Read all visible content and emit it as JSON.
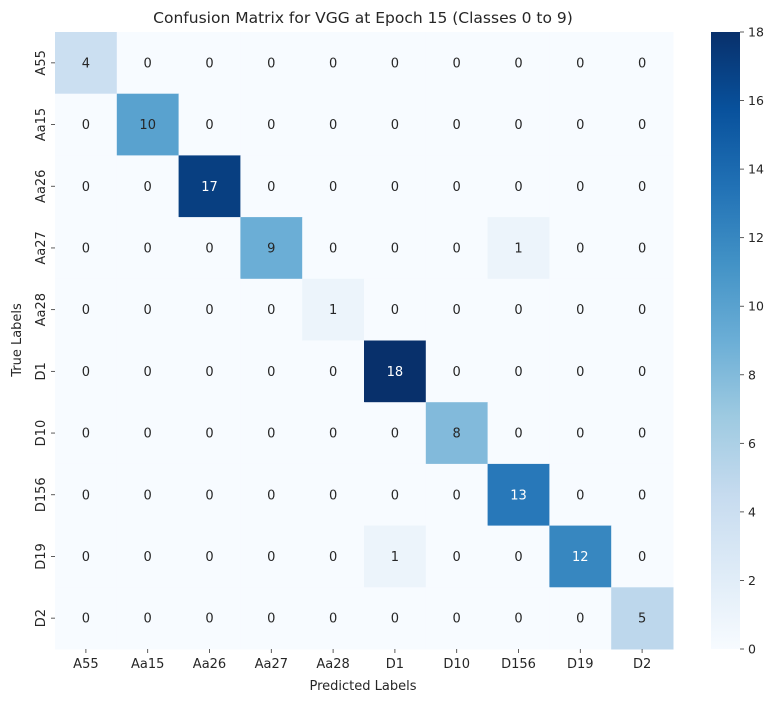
{
  "chart_data": {
    "type": "heatmap",
    "title": "Confusion Matrix for VGG at Epoch 15 (Classes 0 to 9)",
    "xlabel": "Predicted Labels",
    "ylabel": "True Labels",
    "x_categories": [
      "A55",
      "Aa15",
      "Aa26",
      "Aa27",
      "Aa28",
      "D1",
      "D10",
      "D156",
      "D19",
      "D2"
    ],
    "y_categories": [
      "A55",
      "Aa15",
      "Aa26",
      "Aa27",
      "Aa28",
      "D1",
      "D10",
      "D156",
      "D19",
      "D2"
    ],
    "matrix": [
      [
        4,
        0,
        0,
        0,
        0,
        0,
        0,
        0,
        0,
        0
      ],
      [
        0,
        10,
        0,
        0,
        0,
        0,
        0,
        0,
        0,
        0
      ],
      [
        0,
        0,
        17,
        0,
        0,
        0,
        0,
        0,
        0,
        0
      ],
      [
        0,
        0,
        0,
        9,
        0,
        0,
        0,
        1,
        0,
        0
      ],
      [
        0,
        0,
        0,
        0,
        1,
        0,
        0,
        0,
        0,
        0
      ],
      [
        0,
        0,
        0,
        0,
        0,
        18,
        0,
        0,
        0,
        0
      ],
      [
        0,
        0,
        0,
        0,
        0,
        0,
        8,
        0,
        0,
        0
      ],
      [
        0,
        0,
        0,
        0,
        0,
        0,
        0,
        13,
        0,
        0
      ],
      [
        0,
        0,
        0,
        0,
        0,
        1,
        0,
        0,
        12,
        0
      ],
      [
        0,
        0,
        0,
        0,
        0,
        0,
        0,
        0,
        0,
        5
      ]
    ],
    "colorscale": "Blues",
    "value_range": [
      0,
      18
    ],
    "colorbar_ticks": [
      0,
      2,
      4,
      6,
      8,
      10,
      12,
      14,
      16,
      18
    ],
    "annotated": true,
    "grid": false
  }
}
